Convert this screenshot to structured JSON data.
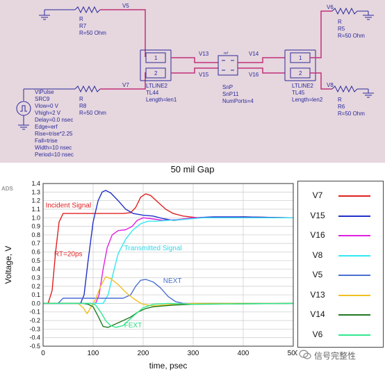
{
  "schematic": {
    "node_labels": [
      "V5",
      "V7",
      "V13",
      "V15",
      "V14",
      "V16",
      "V6",
      "V8"
    ],
    "resistors": [
      {
        "lines": [
          "R",
          "R7",
          "R=50 Ohm"
        ]
      },
      {
        "lines": [
          "R",
          "R8",
          "R=50 Ohm"
        ]
      },
      {
        "lines": [
          "R",
          "R5",
          "R=50 Ohm"
        ]
      },
      {
        "lines": [
          "R",
          "R6",
          "R=50 Ohm"
        ]
      }
    ],
    "source": {
      "lines": [
        "VtPulse",
        "SRC9",
        "Vlow=0 V",
        "Vhigh=2 V",
        "Delay=0.0 nsec",
        "Edge=erf",
        "Rise=trise*2.25",
        "Fall=trise",
        "Width=10 nsec",
        "Period=10 nsec"
      ]
    },
    "tl44": {
      "lines": [
        "LTLINE2",
        "TL44",
        "Length=len1"
      ],
      "ports": [
        "1",
        "2"
      ]
    },
    "tl45": {
      "lines": [
        "LTLINE2",
        "TL45",
        "Length=len2"
      ],
      "ports": [
        "1",
        "2"
      ]
    },
    "snp": {
      "lines": [
        "SnP",
        "SnP11",
        "NumPorts=4"
      ],
      "ref": "ref"
    }
  },
  "gap_title": "50 mil Gap",
  "chart_data": {
    "type": "line",
    "title": "",
    "xlabel": "time, psec",
    "ylabel": "Voltage, V",
    "xlim": [
      0,
      500
    ],
    "ylim": [
      -0.5,
      1.4
    ],
    "xticks": [
      0,
      100,
      200,
      300,
      400,
      500
    ],
    "yticks": [
      -0.5,
      -0.4,
      -0.3,
      -0.2,
      -0.1,
      0.0,
      0.1,
      0.2,
      0.3,
      0.4,
      0.5,
      0.6,
      0.7,
      0.8,
      0.9,
      1.0,
      1.1,
      1.2,
      1.3,
      1.4
    ],
    "grid": true,
    "corner_label": "ADS",
    "annotations": [
      {
        "text": "Incident Signal",
        "x": 5,
        "y": 1.12,
        "color": "#e02020"
      },
      {
        "text": "RT=20ps",
        "x": 22,
        "y": 0.55,
        "color": "#e02020"
      },
      {
        "text": "Transmitted Signal",
        "x": 162,
        "y": 0.62,
        "color": "#30d8e8"
      },
      {
        "text": "NEXT",
        "x": 240,
        "y": 0.24,
        "color": "#4a6fd0"
      },
      {
        "text": "FEXT",
        "x": 162,
        "y": -0.28,
        "color": "#30d880"
      }
    ],
    "series": [
      {
        "name": "V7",
        "color": "#e02020",
        "points": [
          [
            0,
            0
          ],
          [
            10,
            0
          ],
          [
            18,
            0.15
          ],
          [
            25,
            0.6
          ],
          [
            32,
            0.95
          ],
          [
            40,
            1.05
          ],
          [
            60,
            1.05
          ],
          [
            120,
            1.05
          ],
          [
            160,
            1.05
          ],
          [
            175,
            1.06
          ],
          [
            185,
            1.12
          ],
          [
            195,
            1.24
          ],
          [
            205,
            1.28
          ],
          [
            215,
            1.26
          ],
          [
            230,
            1.18
          ],
          [
            245,
            1.1
          ],
          [
            260,
            1.05
          ],
          [
            280,
            1.02
          ],
          [
            310,
            1.0
          ],
          [
            340,
            1.0
          ],
          [
            400,
            1.01
          ],
          [
            500,
            1.0
          ]
        ]
      },
      {
        "name": "V15",
        "color": "#1f2fc8",
        "points": [
          [
            0,
            0
          ],
          [
            75,
            0
          ],
          [
            82,
            0.1
          ],
          [
            90,
            0.5
          ],
          [
            100,
            0.95
          ],
          [
            110,
            1.2
          ],
          [
            118,
            1.3
          ],
          [
            125,
            1.32
          ],
          [
            135,
            1.29
          ],
          [
            150,
            1.2
          ],
          [
            165,
            1.1
          ],
          [
            180,
            1.05
          ],
          [
            200,
            1.03
          ],
          [
            220,
            1.02
          ],
          [
            240,
            0.99
          ],
          [
            260,
            0.97
          ],
          [
            280,
            0.98
          ],
          [
            300,
            1.0
          ],
          [
            340,
            1.01
          ],
          [
            400,
            1.01
          ],
          [
            500,
            1.0
          ]
        ]
      },
      {
        "name": "V16",
        "color": "#e020e0",
        "points": [
          [
            0,
            0
          ],
          [
            105,
            0
          ],
          [
            112,
            0.1
          ],
          [
            120,
            0.4
          ],
          [
            128,
            0.65
          ],
          [
            138,
            0.8
          ],
          [
            150,
            0.85
          ],
          [
            165,
            0.86
          ],
          [
            178,
            0.9
          ],
          [
            188,
            0.97
          ],
          [
            200,
            1.0
          ],
          [
            215,
            0.99
          ],
          [
            240,
            0.97
          ],
          [
            270,
            0.98
          ],
          [
            300,
            1.0
          ],
          [
            400,
            1.0
          ],
          [
            500,
            1.0
          ]
        ]
      },
      {
        "name": "V8",
        "color": "#30e8f0",
        "points": [
          [
            0,
            0
          ],
          [
            120,
            0
          ],
          [
            130,
            0.1
          ],
          [
            140,
            0.35
          ],
          [
            150,
            0.58
          ],
          [
            165,
            0.75
          ],
          [
            180,
            0.86
          ],
          [
            195,
            0.93
          ],
          [
            210,
            0.96
          ],
          [
            225,
            0.96
          ],
          [
            250,
            0.97
          ],
          [
            280,
            0.98
          ],
          [
            320,
            1.0
          ],
          [
            400,
            1.0
          ],
          [
            500,
            1.0
          ]
        ]
      },
      {
        "name": "V5",
        "color": "#4a6fd0",
        "points": [
          [
            0,
            0
          ],
          [
            30,
            0
          ],
          [
            40,
            0.06
          ],
          [
            60,
            0.06
          ],
          [
            100,
            0.06
          ],
          [
            140,
            0.06
          ],
          [
            160,
            0.06
          ],
          [
            175,
            0.1
          ],
          [
            185,
            0.2
          ],
          [
            195,
            0.27
          ],
          [
            205,
            0.28
          ],
          [
            220,
            0.25
          ],
          [
            235,
            0.18
          ],
          [
            250,
            0.08
          ],
          [
            265,
            0.02
          ],
          [
            280,
            0.0
          ],
          [
            300,
            0.0
          ],
          [
            500,
            0.0
          ]
        ]
      },
      {
        "name": "V13",
        "color": "#f0c020",
        "points": [
          [
            0,
            0
          ],
          [
            70,
            0
          ],
          [
            80,
            -0.05
          ],
          [
            88,
            -0.12
          ],
          [
            95,
            -0.05
          ],
          [
            105,
            0.05
          ],
          [
            115,
            0.2
          ],
          [
            125,
            0.31
          ],
          [
            135,
            0.29
          ],
          [
            150,
            0.22
          ],
          [
            165,
            0.13
          ],
          [
            180,
            0.06
          ],
          [
            190,
            0.02
          ],
          [
            200,
            -0.01
          ],
          [
            220,
            -0.03
          ],
          [
            240,
            -0.02
          ],
          [
            260,
            -0.01
          ],
          [
            300,
            0.0
          ],
          [
            500,
            0.0
          ]
        ]
      },
      {
        "name": "V14",
        "color": "#1f7a1f",
        "points": [
          [
            0,
            0
          ],
          [
            80,
            0
          ],
          [
            90,
            -0.01
          ],
          [
            100,
            -0.04
          ],
          [
            110,
            -0.15
          ],
          [
            120,
            -0.27
          ],
          [
            130,
            -0.28
          ],
          [
            145,
            -0.24
          ],
          [
            160,
            -0.2
          ],
          [
            175,
            -0.16
          ],
          [
            190,
            -0.1
          ],
          [
            205,
            -0.06
          ],
          [
            220,
            -0.04
          ],
          [
            240,
            -0.03
          ],
          [
            260,
            -0.02
          ],
          [
            300,
            -0.01
          ],
          [
            500,
            0.0
          ]
        ]
      },
      {
        "name": "V6",
        "color": "#30e890",
        "points": [
          [
            0,
            0
          ],
          [
            95,
            0
          ],
          [
            105,
            -0.02
          ],
          [
            115,
            -0.1
          ],
          [
            125,
            -0.2
          ],
          [
            135,
            -0.26
          ],
          [
            145,
            -0.28
          ],
          [
            160,
            -0.26
          ],
          [
            180,
            -0.15
          ],
          [
            200,
            -0.05
          ],
          [
            220,
            -0.01
          ],
          [
            250,
            0.0
          ],
          [
            300,
            -0.01
          ],
          [
            500,
            0.0
          ]
        ]
      }
    ]
  },
  "watermark": "信号完整性"
}
